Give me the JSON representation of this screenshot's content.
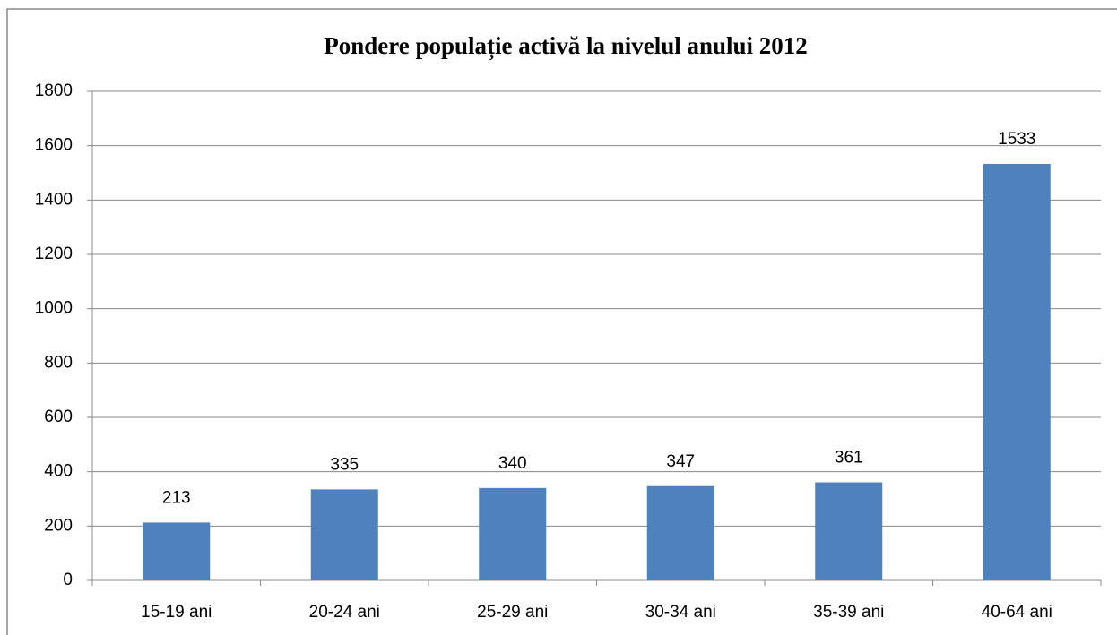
{
  "chart_data": {
    "type": "bar",
    "title": "Pondere populație activă la nivelul anului 2012",
    "categories": [
      "15-19 ani",
      "20-24 ani",
      "25-29 ani",
      "30-34 ani",
      "35-39 ani",
      "40-64 ani"
    ],
    "values": [
      213,
      335,
      340,
      347,
      361,
      1533
    ],
    "color": "#4f81bd",
    "ylim": [
      0,
      1800
    ],
    "yticks": [
      0,
      200,
      400,
      600,
      800,
      1000,
      1200,
      1400,
      1600,
      1800
    ],
    "grid": true,
    "data_labels": true
  }
}
